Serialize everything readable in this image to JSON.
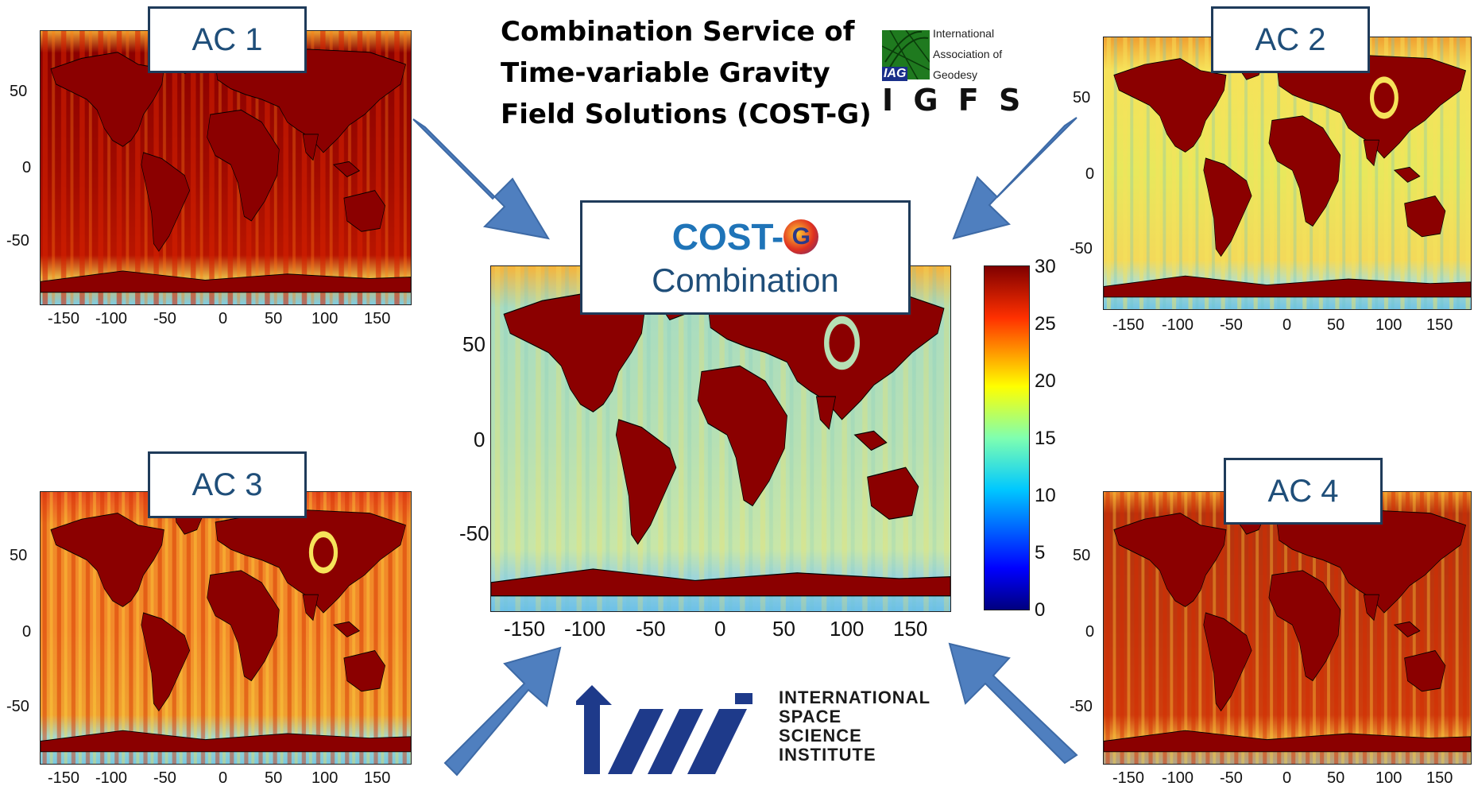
{
  "title": {
    "lines": [
      "Combination Service of",
      "Time-variable Gravity",
      "Field Solutions (COST-G)"
    ]
  },
  "iag_logo": {
    "lines": [
      "International",
      "Association of",
      "Geodesy"
    ],
    "abbrev": "IAG",
    "igfs": "I G F S"
  },
  "center": {
    "logo_text": "COST-",
    "logo_glyph": "G",
    "subtitle": "Combination"
  },
  "panels": [
    {
      "label": "AC 1",
      "intensity": "very-high"
    },
    {
      "label": "AC 2",
      "intensity": "medium"
    },
    {
      "label": "AC 3",
      "intensity": "medium"
    },
    {
      "label": "AC 4",
      "intensity": "high"
    }
  ],
  "axes_small": {
    "x_ticks": [
      "-150",
      "-100",
      "-50",
      "0",
      "50",
      "100",
      "150"
    ],
    "y_ticks": [
      "50",
      "0",
      "-50"
    ]
  },
  "axes_center": {
    "x_ticks": [
      "-150",
      "-100",
      "-50",
      "0",
      "50",
      "100",
      "150"
    ],
    "y_ticks": [
      "50",
      "0",
      "-50"
    ]
  },
  "colorbar": {
    "ticks": [
      "30",
      "25",
      "20",
      "15",
      "10",
      "5",
      "0"
    ],
    "range": [
      0,
      30
    ],
    "colormap": "jet"
  },
  "issi": {
    "lines": [
      "INTERNATIONAL",
      "SPACE",
      "SCIENCE",
      "INSTITUTE"
    ]
  },
  "colors": {
    "arrow": "#4f7fbf",
    "box_border": "#1f3b5a",
    "label_text": "#1f4e79",
    "issi_blue": "#1e3a8a",
    "high": "#8b0000",
    "mid": "#7fcfbf"
  }
}
